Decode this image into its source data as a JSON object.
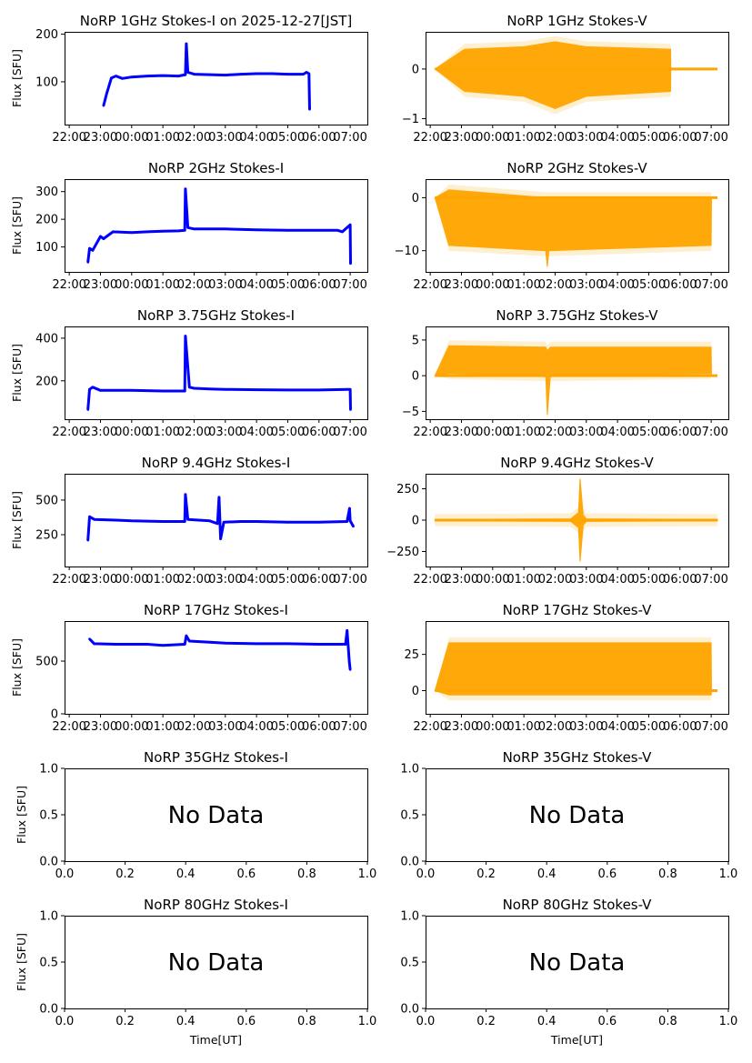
{
  "figure": {
    "ylabel": "Flux [SFU]",
    "xlabel": "Time[UT]",
    "no_data_text": "No Data",
    "colors": {
      "stokes_i": "#0000ff",
      "stokes_v": "#ffa500"
    }
  },
  "chart_data": [
    {
      "type": "scatter",
      "title": "NoRP 1GHz Stokes-I on 2025-12-27[JST]",
      "stokes": "I",
      "xlabel": "",
      "ylabel": "Flux [SFU]",
      "xticks": [
        "22:00",
        "23:00",
        "00:00",
        "01:00",
        "02:00",
        "03:00",
        "04:00",
        "05:00",
        "06:00",
        "07:00"
      ],
      "xlim": [
        21.85,
        31.55
      ],
      "yticks": [
        100,
        200
      ],
      "ylim": [
        10,
        205
      ],
      "series": [
        {
          "name": "Stokes-I",
          "points": [
            [
              23.1,
              50
            ],
            [
              23.2,
              75
            ],
            [
              23.35,
              108
            ],
            [
              23.5,
              112
            ],
            [
              23.7,
              107
            ],
            [
              24.0,
              110
            ],
            [
              24.5,
              112
            ],
            [
              25.0,
              113
            ],
            [
              25.5,
              112
            ],
            [
              25.72,
              115
            ],
            [
              25.75,
              180
            ],
            [
              25.8,
              120
            ],
            [
              26.0,
              116
            ],
            [
              26.5,
              115
            ],
            [
              27.0,
              114
            ],
            [
              27.5,
              116
            ],
            [
              28.0,
              117
            ],
            [
              28.5,
              117
            ],
            [
              29.0,
              116
            ],
            [
              29.5,
              116
            ],
            [
              29.6,
              120
            ],
            [
              29.68,
              117
            ],
            [
              29.7,
              42
            ]
          ]
        }
      ]
    },
    {
      "type": "scatter",
      "title": "NoRP 1GHz Stokes-V",
      "stokes": "V",
      "xticks": [
        "22:00",
        "23:00",
        "00:00",
        "01:00",
        "02:00",
        "03:00",
        "04:00",
        "05:00",
        "06:00",
        "07:00"
      ],
      "xlim": [
        21.85,
        31.55
      ],
      "yticks": [
        -1,
        0
      ],
      "ylim": [
        -1.12,
        0.75
      ],
      "series": [
        {
          "name": "Stokes-V",
          "band": [
            [
              22.15,
              0,
              0
            ],
            [
              23.1,
              -0.45,
              0.4
            ],
            [
              25.0,
              -0.55,
              0.45
            ],
            [
              26.0,
              -0.8,
              0.55
            ],
            [
              27.0,
              -0.55,
              0.45
            ],
            [
              29.7,
              -0.45,
              0.4
            ],
            [
              29.71,
              0,
              0
            ],
            [
              31.2,
              0,
              0
            ]
          ]
        }
      ]
    },
    {
      "type": "scatter",
      "title": "NoRP 2GHz Stokes-I",
      "stokes": "I",
      "xticks": [
        "22:00",
        "23:00",
        "00:00",
        "01:00",
        "02:00",
        "03:00",
        "04:00",
        "05:00",
        "06:00",
        "07:00"
      ],
      "xlim": [
        21.85,
        31.55
      ],
      "yticks": [
        100,
        200,
        300
      ],
      "ylim": [
        10,
        345
      ],
      "series": [
        {
          "name": "Stokes-I",
          "points": [
            [
              22.6,
              45
            ],
            [
              22.65,
              95
            ],
            [
              22.75,
              88
            ],
            [
              23.0,
              138
            ],
            [
              23.1,
              130
            ],
            [
              23.4,
              155
            ],
            [
              24.0,
              152
            ],
            [
              24.5,
              155
            ],
            [
              25.0,
              157
            ],
            [
              25.5,
              158
            ],
            [
              25.7,
              160
            ],
            [
              25.72,
              310
            ],
            [
              25.8,
              170
            ],
            [
              26.0,
              165
            ],
            [
              27.0,
              165
            ],
            [
              28.0,
              162
            ],
            [
              29.0,
              160
            ],
            [
              30.0,
              160
            ],
            [
              30.6,
              160
            ],
            [
              30.75,
              155
            ],
            [
              30.95,
              175
            ],
            [
              31.0,
              180
            ],
            [
              31.01,
              40
            ]
          ]
        }
      ]
    },
    {
      "type": "scatter",
      "title": "NoRP 2GHz Stokes-V",
      "stokes": "V",
      "xticks": [
        "22:00",
        "23:00",
        "00:00",
        "01:00",
        "02:00",
        "03:00",
        "04:00",
        "05:00",
        "06:00",
        "07:00"
      ],
      "xlim": [
        21.85,
        31.55
      ],
      "yticks": [
        -10,
        0
      ],
      "ylim": [
        -14,
        3.5
      ],
      "series": [
        {
          "name": "Stokes-V",
          "band": [
            [
              22.15,
              0,
              0
            ],
            [
              22.6,
              -9,
              1.5
            ],
            [
              25.7,
              -10,
              0
            ],
            [
              25.75,
              -13,
              0
            ],
            [
              25.8,
              -10,
              0
            ],
            [
              31.0,
              -9,
              0
            ],
            [
              31.01,
              0,
              0
            ],
            [
              31.2,
              0,
              0
            ]
          ]
        }
      ]
    },
    {
      "type": "scatter",
      "title": "NoRP 3.75GHz Stokes-I",
      "stokes": "I",
      "xticks": [
        "22:00",
        "23:00",
        "00:00",
        "01:00",
        "02:00",
        "03:00",
        "04:00",
        "05:00",
        "06:00",
        "07:00"
      ],
      "xlim": [
        21.85,
        31.55
      ],
      "yticks": [
        200,
        400
      ],
      "ylim": [
        20,
        455
      ],
      "series": [
        {
          "name": "Stokes-I",
          "points": [
            [
              22.6,
              65
            ],
            [
              22.65,
              160
            ],
            [
              22.75,
              170
            ],
            [
              23.0,
              155
            ],
            [
              24.0,
              155
            ],
            [
              25.0,
              152
            ],
            [
              25.7,
              152
            ],
            [
              25.72,
              410
            ],
            [
              25.85,
              170
            ],
            [
              26.0,
              165
            ],
            [
              26.5,
              162
            ],
            [
              27.0,
              160
            ],
            [
              28.0,
              158
            ],
            [
              29.0,
              157
            ],
            [
              30.0,
              157
            ],
            [
              31.0,
              160
            ],
            [
              31.01,
              65
            ]
          ]
        }
      ]
    },
    {
      "type": "scatter",
      "title": "NoRP 3.75GHz Stokes-V",
      "stokes": "V",
      "xticks": [
        "22:00",
        "23:00",
        "00:00",
        "01:00",
        "02:00",
        "03:00",
        "04:00",
        "05:00",
        "06:00",
        "07:00"
      ],
      "xlim": [
        21.85,
        31.55
      ],
      "yticks": [
        -5,
        0,
        5
      ],
      "ylim": [
        -6.1,
        6.9
      ],
      "series": [
        {
          "name": "Stokes-V",
          "band": [
            [
              22.15,
              0,
              0
            ],
            [
              22.6,
              0.3,
              4.2
            ],
            [
              25.7,
              0,
              4.0
            ],
            [
              25.75,
              -5.5,
              3.5
            ],
            [
              25.85,
              0,
              4.0
            ],
            [
              31.0,
              0.3,
              4.0
            ],
            [
              31.01,
              0,
              0
            ],
            [
              31.2,
              0,
              0
            ]
          ]
        }
      ]
    },
    {
      "type": "scatter",
      "title": "NoRP 9.4GHz Stokes-I",
      "stokes": "I",
      "xticks": [
        "22:00",
        "23:00",
        "00:00",
        "01:00",
        "02:00",
        "03:00",
        "04:00",
        "05:00",
        "06:00",
        "07:00"
      ],
      "xlim": [
        21.85,
        31.55
      ],
      "yticks": [
        250,
        500
      ],
      "ylim": [
        20,
        690
      ],
      "series": [
        {
          "name": "Stokes-I",
          "points": [
            [
              22.6,
              210
            ],
            [
              22.65,
              380
            ],
            [
              22.8,
              360
            ],
            [
              23.5,
              355
            ],
            [
              24.0,
              350
            ],
            [
              25.0,
              345
            ],
            [
              25.7,
              345
            ],
            [
              25.72,
              540
            ],
            [
              25.8,
              360
            ],
            [
              26.5,
              350
            ],
            [
              26.75,
              330
            ],
            [
              26.8,
              520
            ],
            [
              26.85,
              220
            ],
            [
              26.95,
              340
            ],
            [
              27.5,
              345
            ],
            [
              28.0,
              345
            ],
            [
              29.0,
              340
            ],
            [
              30.0,
              340
            ],
            [
              30.9,
              345
            ],
            [
              30.98,
              440
            ],
            [
              31.0,
              350
            ],
            [
              31.1,
              310
            ]
          ]
        }
      ]
    },
    {
      "type": "scatter",
      "title": "NoRP 9.4GHz Stokes-V",
      "stokes": "V",
      "xticks": [
        "22:00",
        "23:00",
        "00:00",
        "01:00",
        "02:00",
        "03:00",
        "04:00",
        "05:00",
        "06:00",
        "07:00"
      ],
      "xlim": [
        21.85,
        31.55
      ],
      "yticks": [
        -250,
        0,
        250
      ],
      "ylim": [
        -370,
        370
      ],
      "series": [
        {
          "name": "Stokes-V",
          "band": [
            [
              22.15,
              -5,
              5
            ],
            [
              26.5,
              -10,
              10
            ],
            [
              26.75,
              -60,
              60
            ],
            [
              26.8,
              -330,
              330
            ],
            [
              26.9,
              -40,
              40
            ],
            [
              27.0,
              -10,
              10
            ],
            [
              31.2,
              -5,
              5
            ]
          ]
        }
      ]
    },
    {
      "type": "scatter",
      "title": "NoRP 17GHz Stokes-I",
      "stokes": "I",
      "xticks": [
        "22:00",
        "23:00",
        "00:00",
        "01:00",
        "02:00",
        "03:00",
        "04:00",
        "05:00",
        "06:00",
        "07:00"
      ],
      "xlim": [
        21.85,
        31.55
      ],
      "yticks": [
        0,
        500
      ],
      "ylim": [
        0,
        880
      ],
      "series": [
        {
          "name": "Stokes-I",
          "points": [
            [
              22.65,
              710
            ],
            [
              22.8,
              665
            ],
            [
              23.5,
              660
            ],
            [
              24.5,
              660
            ],
            [
              25.0,
              650
            ],
            [
              25.7,
              660
            ],
            [
              25.75,
              740
            ],
            [
              25.85,
              690
            ],
            [
              26.5,
              680
            ],
            [
              27.0,
              670
            ],
            [
              28.0,
              665
            ],
            [
              29.0,
              665
            ],
            [
              30.0,
              660
            ],
            [
              30.85,
              660
            ],
            [
              30.9,
              790
            ],
            [
              30.97,
              500
            ],
            [
              31.0,
              420
            ]
          ]
        }
      ]
    },
    {
      "type": "scatter",
      "title": "NoRP 17GHz Stokes-V",
      "stokes": "V",
      "xticks": [
        "22:00",
        "23:00",
        "00:00",
        "01:00",
        "02:00",
        "03:00",
        "04:00",
        "05:00",
        "06:00",
        "07:00"
      ],
      "xlim": [
        21.85,
        31.55
      ],
      "yticks": [
        0,
        25
      ],
      "ylim": [
        -16,
        48
      ],
      "series": [
        {
          "name": "Stokes-V",
          "band": [
            [
              22.15,
              0,
              0
            ],
            [
              22.6,
              -3,
              33
            ],
            [
              31.0,
              -3,
              33
            ],
            [
              31.01,
              0,
              0
            ],
            [
              31.2,
              0,
              0
            ]
          ]
        }
      ]
    },
    {
      "type": "scatter",
      "title": "NoRP 35GHz Stokes-I",
      "stokes": "I",
      "no_data": true,
      "xticks": [
        "0.0",
        "0.2",
        "0.4",
        "0.6",
        "0.8",
        "1.0"
      ],
      "yticks": [
        "0.0",
        "0.5",
        "1.0"
      ],
      "xlim": [
        0,
        1
      ],
      "ylim": [
        0,
        1
      ]
    },
    {
      "type": "scatter",
      "title": "NoRP 35GHz Stokes-V",
      "stokes": "V",
      "no_data": true,
      "xticks": [
        "0.0",
        "0.2",
        "0.4",
        "0.6",
        "0.8",
        "1.0"
      ],
      "yticks": [
        "0.0",
        "0.5",
        "1.0"
      ],
      "xlim": [
        0,
        1
      ],
      "ylim": [
        0,
        1
      ]
    },
    {
      "type": "scatter",
      "title": "NoRP 80GHz Stokes-I",
      "stokes": "I",
      "no_data": true,
      "xlabel": "Time[UT]",
      "xticks": [
        "0.0",
        "0.2",
        "0.4",
        "0.6",
        "0.8",
        "1.0"
      ],
      "yticks": [
        "0.0",
        "0.5",
        "1.0"
      ],
      "xlim": [
        0,
        1
      ],
      "ylim": [
        0,
        1
      ]
    },
    {
      "type": "scatter",
      "title": "NoRP 80GHz Stokes-V",
      "stokes": "V",
      "no_data": true,
      "xlabel": "Time[UT]",
      "xticks": [
        "0.0",
        "0.2",
        "0.4",
        "0.6",
        "0.8",
        "1.0"
      ],
      "yticks": [
        "0.0",
        "0.5",
        "1.0"
      ],
      "xlim": [
        0,
        1
      ],
      "ylim": [
        0,
        1
      ]
    }
  ]
}
